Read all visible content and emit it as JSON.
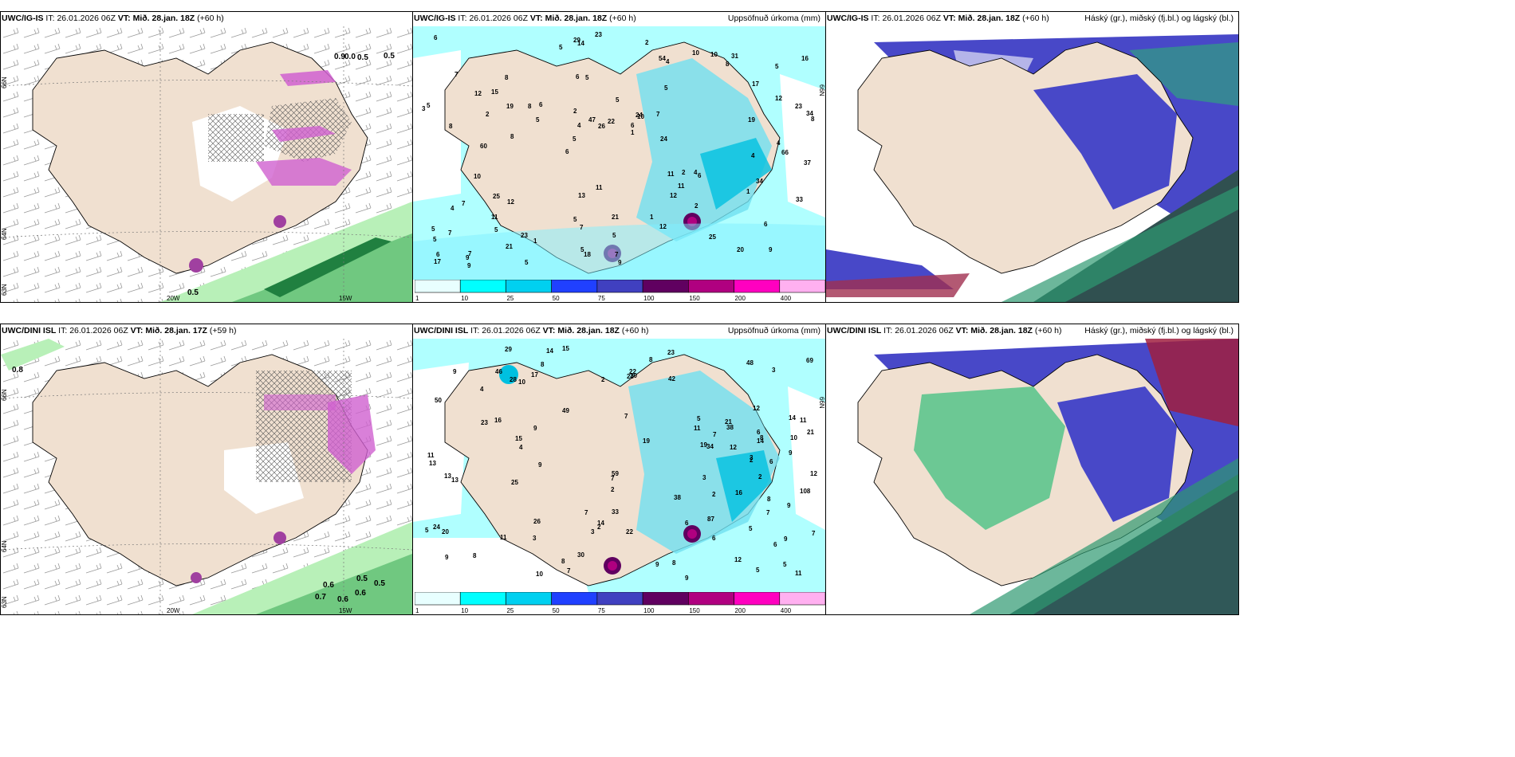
{
  "panels": [
    {
      "id": "top-left",
      "model": "UWC/IG-IS",
      "it_label": "IT:",
      "it_value": "26.01.2026 06Z",
      "vt_label": "VT:",
      "vt_value": "Mið. 28.jan. 18Z",
      "lead": "(+60 h)",
      "right_title": "",
      "lat_labels": [
        "66N",
        "64N",
        "63N"
      ],
      "lon_labels": [
        "20W",
        "15W"
      ],
      "value_labels": [
        "0.9",
        "0.0",
        "0.5",
        "0.5",
        "0.5"
      ]
    },
    {
      "id": "top-middle",
      "model": "UWC/IG-IS",
      "it_label": "IT:",
      "it_value": "26.01.2026 06Z",
      "vt_label": "VT:",
      "vt_value": "Mið. 28.jan. 18Z",
      "lead": "(+60 h)",
      "right_title": "Uppsöfnuð úrkoma (mm)",
      "lat_labels": [
        "66N"
      ],
      "numbers": [
        "9",
        "8",
        "5",
        "6",
        "5",
        "7",
        "6",
        "5",
        "7",
        "6",
        "5",
        "5",
        "5",
        "10",
        "6",
        "7",
        "14",
        "8",
        "11",
        "12",
        "5",
        "5",
        "4",
        "8",
        "10",
        "12",
        "20",
        "6",
        "4",
        "9",
        "8",
        "2",
        "12",
        "21",
        "23",
        "6",
        "6",
        "7",
        "1",
        "4",
        "17",
        "16",
        "11",
        "12",
        "11",
        "9",
        "17",
        "21",
        "31",
        "23",
        "8",
        "5",
        "15",
        "10",
        "9",
        "2",
        "5",
        "47",
        "33",
        "13",
        "1",
        "2",
        "19",
        "5",
        "6",
        "12",
        "37",
        "2",
        "5",
        "22",
        "7",
        "24",
        "34",
        "5",
        "19",
        "11",
        "25",
        "7",
        "1",
        "29",
        "66",
        "7",
        "2",
        "26",
        "1",
        "3",
        "18",
        "54",
        "4",
        "60",
        "5",
        "4",
        "34",
        "10",
        "25",
        "23",
        "24",
        "8",
        "5",
        "4"
      ],
      "colorbar": {
        "ticks": [
          "1",
          "10",
          "25",
          "50",
          "75",
          "100",
          "150",
          "200",
          "400"
        ],
        "colors": [
          "#e8ffff",
          "#00ffff",
          "#00d0f0",
          "#2040ff",
          "#4040c0",
          "#600060",
          "#b00080",
          "#ff00c0",
          "#ffb0f0"
        ]
      }
    },
    {
      "id": "top-right",
      "model": "UWC/IG-IS",
      "it_label": "IT:",
      "it_value": "26.01.2026 06Z",
      "vt_label": "VT:",
      "vt_value": "Mið. 28.jan. 18Z",
      "lead": "(+60 h)",
      "right_title": "Háský (gr.), miðský (fj.bl.) og lágský (bl.)"
    },
    {
      "id": "bottom-left",
      "model": "UWC/DINI ISL",
      "it_label": "IT:",
      "it_value": "26.01.2026 06Z",
      "vt_label": "VT:",
      "vt_value": "Mið. 28.jan. 17Z",
      "lead": "(+59 h)",
      "right_title": "",
      "lat_labels": [
        "66N",
        "64N",
        "63N"
      ],
      "lon_labels": [
        "20W",
        "15W"
      ],
      "value_labels": [
        "0.8",
        "0.6",
        "0.5",
        "0.5",
        "0.7",
        "0.6",
        "0.6"
      ]
    },
    {
      "id": "bottom-middle",
      "model": "UWC/DINI ISL",
      "it_label": "IT:",
      "it_value": "26.01.2026 06Z",
      "vt_label": "VT:",
      "vt_value": "Mið. 28.jan. 18Z",
      "lead": "(+60 h)",
      "right_title": "Uppsöfnuð úrkoma (mm)",
      "lat_labels": [
        "66N"
      ],
      "numbers": [
        "5",
        "14",
        "9",
        "7",
        "9",
        "8",
        "6",
        "3",
        "3",
        "16",
        "10",
        "50",
        "3",
        "7",
        "20",
        "4",
        "6",
        "17",
        "2",
        "8",
        "13",
        "13",
        "9",
        "19",
        "8",
        "3",
        "8",
        "42",
        "5",
        "7",
        "25",
        "6",
        "10",
        "7",
        "8",
        "12",
        "34",
        "2",
        "5",
        "9",
        "16",
        "12",
        "23",
        "4",
        "9",
        "2",
        "8",
        "23",
        "9",
        "38",
        "11",
        "2",
        "20",
        "21",
        "6",
        "3",
        "14",
        "46",
        "9",
        "22",
        "15",
        "87",
        "11",
        "22",
        "28",
        "5",
        "5",
        "59",
        "21",
        "23",
        "12",
        "2",
        "26",
        "38",
        "14",
        "7",
        "29",
        "9",
        "2",
        "7",
        "8",
        "108",
        "69",
        "6",
        "30",
        "14",
        "13",
        "33",
        "48",
        "49",
        "19",
        "15",
        "10",
        "11",
        "7",
        "11",
        "24",
        "11",
        "12",
        "9"
      ],
      "colorbar": {
        "ticks": [
          "1",
          "10",
          "25",
          "50",
          "75",
          "100",
          "150",
          "200",
          "400"
        ],
        "colors": [
          "#e8ffff",
          "#00ffff",
          "#00d0f0",
          "#2040ff",
          "#4040c0",
          "#600060",
          "#b00080",
          "#ff00c0",
          "#ffb0f0"
        ]
      }
    },
    {
      "id": "bottom-right",
      "model": "UWC/DINI ISL",
      "it_label": "IT:",
      "it_value": "26.01.2026 06Z",
      "vt_label": "VT:",
      "vt_value": "Mið. 28.jan. 18Z",
      "lead": "(+60 h)",
      "right_title": "Háský (gr.), miðský (fj.bl.) og lágský (bl.)"
    }
  ],
  "colors": {
    "land": "#f0e0d0",
    "sea_precip": "#b0ffff",
    "green": "#98e8a0",
    "purple": "#d060d0",
    "high_cloud": "#30a060",
    "mid_cloud": "#4040c0",
    "low_cloud": "#305050"
  }
}
